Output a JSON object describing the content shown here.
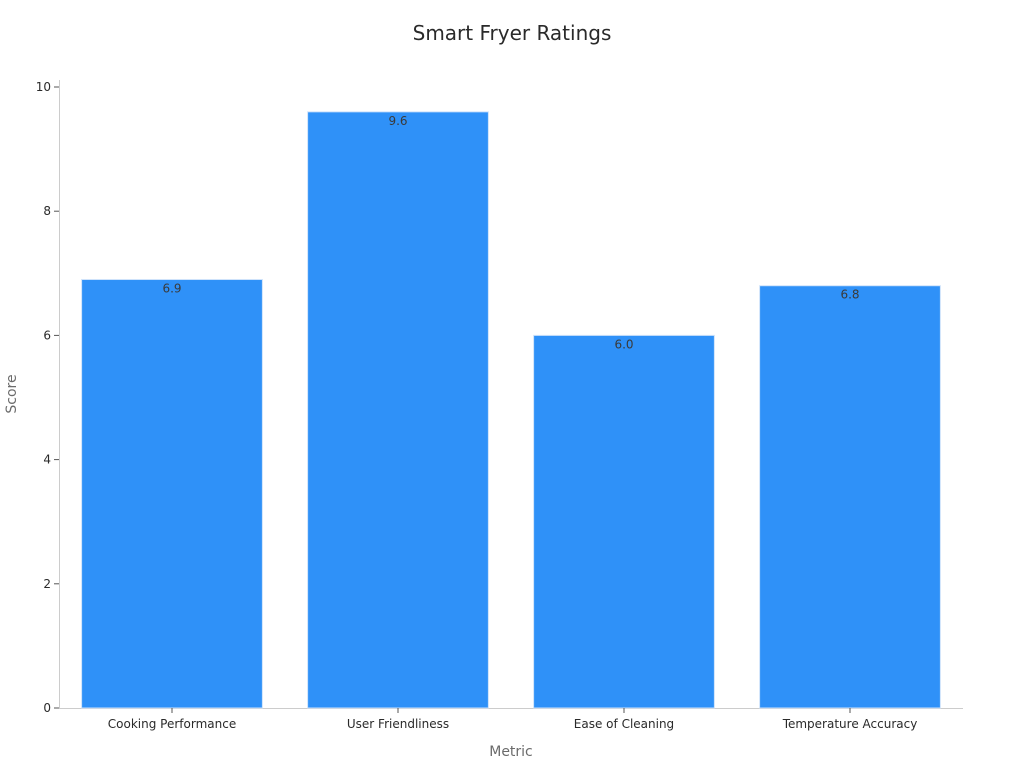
{
  "chart_data": {
    "type": "bar",
    "title": "Smart Fryer Ratings",
    "xlabel": "Metric",
    "ylabel": "Score",
    "categories": [
      "Cooking Performance",
      "User Friendliness",
      "Ease of Cleaning",
      "Temperature Accuracy"
    ],
    "values": [
      6.9,
      9.6,
      6.0,
      6.8
    ],
    "data_labels": [
      "6.9",
      "9.6",
      "6.0",
      "6.8"
    ],
    "ylim": [
      0,
      10
    ],
    "yticks": [
      0,
      2,
      4,
      6,
      8,
      10
    ],
    "grid": false,
    "bar_color": "#2f91f8",
    "bar_edge_color": "#cfe3fb"
  }
}
